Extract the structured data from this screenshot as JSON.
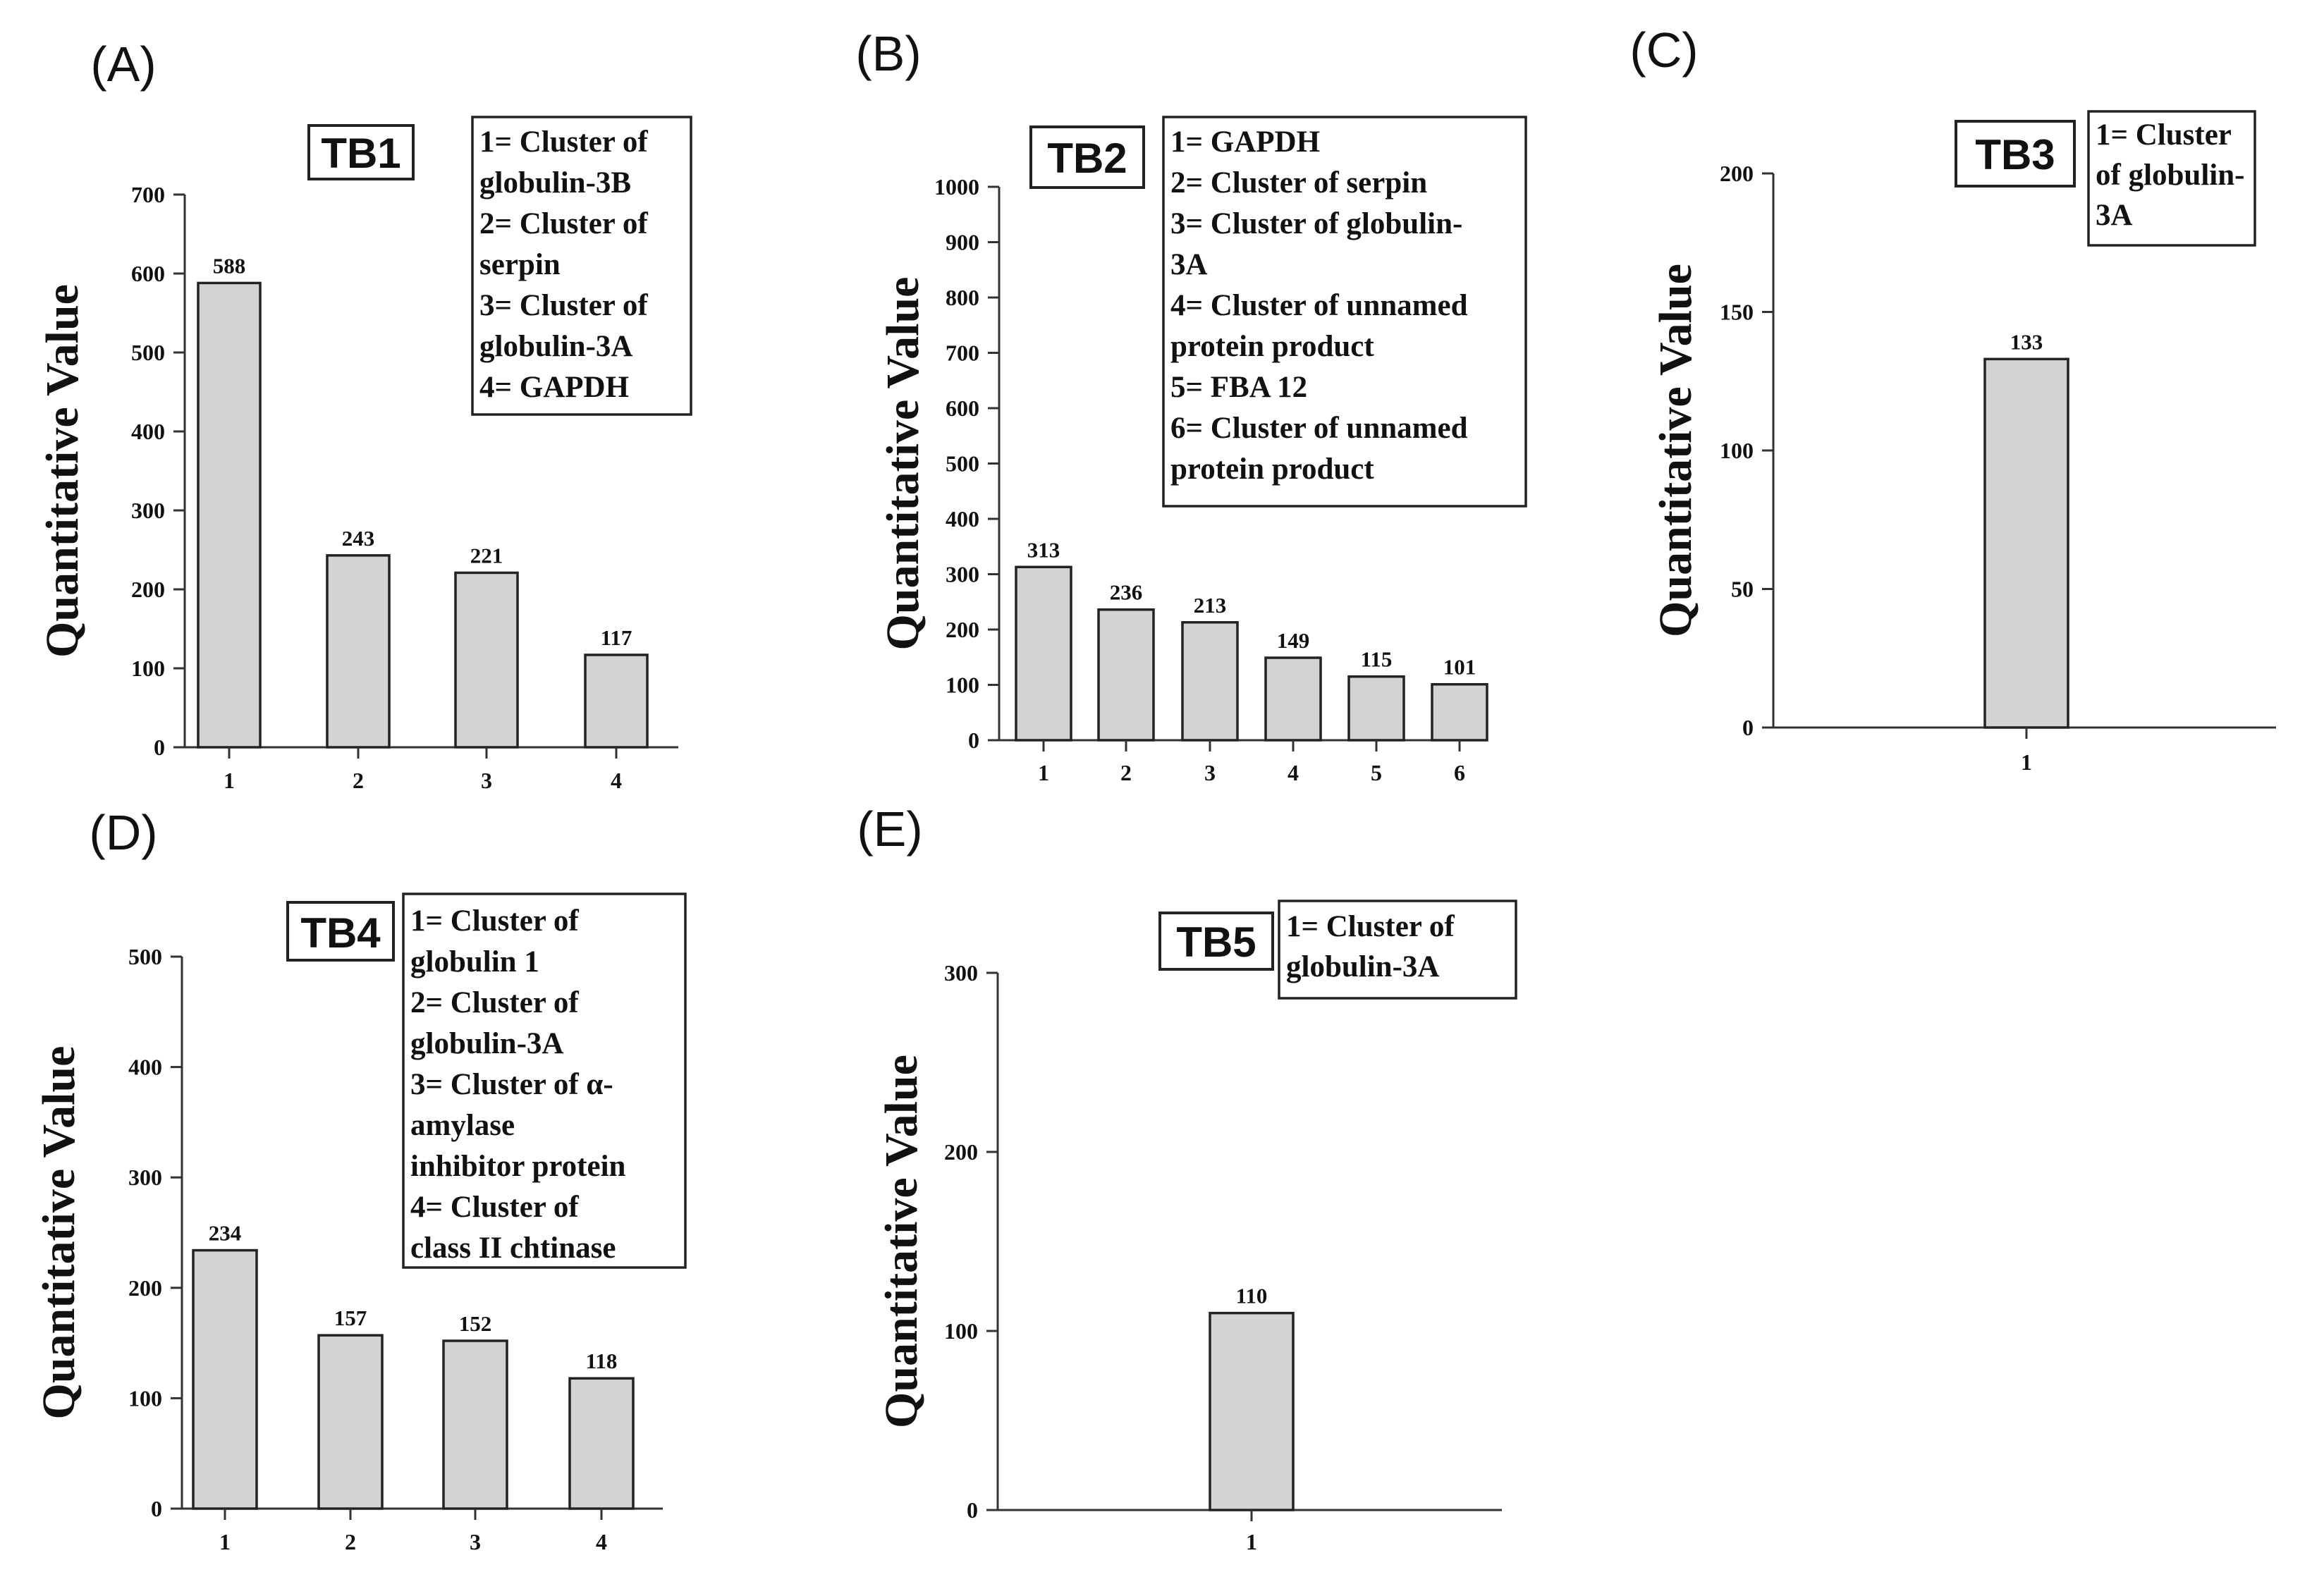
{
  "chart_data": [
    {
      "type": "bar",
      "panel": "(A)",
      "title": "TB1",
      "ylabel": "Quantitative Value",
      "xlabel": "",
      "ylim": [
        0,
        700
      ],
      "yticks": [
        0,
        100,
        200,
        300,
        400,
        500,
        600,
        700
      ],
      "categories": [
        "1",
        "2",
        "3",
        "4"
      ],
      "values": [
        588,
        243,
        221,
        117
      ],
      "legend": [
        "1= Cluster of",
        "globulin-3B",
        "2= Cluster of",
        "serpin",
        "3= Cluster of",
        "globulin-3A",
        "4= GAPDH"
      ]
    },
    {
      "type": "bar",
      "panel": "(B)",
      "title": "TB2",
      "ylabel": "Quantitative Value",
      "xlabel": "",
      "ylim": [
        0,
        1000
      ],
      "yticks": [
        0,
        100,
        200,
        300,
        400,
        500,
        600,
        700,
        800,
        900,
        1000
      ],
      "categories": [
        "1",
        "2",
        "3",
        "4",
        "5",
        "6"
      ],
      "values": [
        313,
        236,
        213,
        149,
        115,
        101
      ],
      "legend": [
        "1= GAPDH",
        "2= Cluster of serpin",
        "3= Cluster of globulin-",
        "3A",
        "4= Cluster of unnamed",
        "protein product",
        "5= FBA 12",
        "6= Cluster of unnamed",
        "protein product"
      ]
    },
    {
      "type": "bar",
      "panel": "(C)",
      "title": "TB3",
      "ylabel": "Quantitative Value",
      "xlabel": "",
      "ylim": [
        0,
        200
      ],
      "yticks": [
        0,
        50,
        100,
        150,
        200
      ],
      "categories": [
        "1"
      ],
      "values": [
        133
      ],
      "legend": [
        "1= Cluster",
        "of globulin-",
        "3A"
      ]
    },
    {
      "type": "bar",
      "panel": "(D)",
      "title": "TB4",
      "ylabel": "Quantitative Value",
      "xlabel": "",
      "ylim": [
        0,
        500
      ],
      "yticks": [
        0,
        100,
        200,
        300,
        400,
        500
      ],
      "categories": [
        "1",
        "2",
        "3",
        "4"
      ],
      "values": [
        234,
        157,
        152,
        118
      ],
      "legend": [
        "1= Cluster of",
        "globulin 1",
        "2= Cluster of",
        "globulin-3A",
        "3= Cluster of α-",
        "amylase",
        "inhibitor protein",
        "4= Cluster of",
        "class II chtinase"
      ]
    },
    {
      "type": "bar",
      "panel": "(E)",
      "title": "TB5",
      "ylabel": "Quantitative Value",
      "xlabel": "",
      "ylim": [
        0,
        300
      ],
      "yticks": [
        0,
        100,
        200,
        300
      ],
      "categories": [
        "1"
      ],
      "values": [
        110
      ],
      "legend": [
        "1= Cluster of",
        "globulin-3A"
      ]
    }
  ]
}
